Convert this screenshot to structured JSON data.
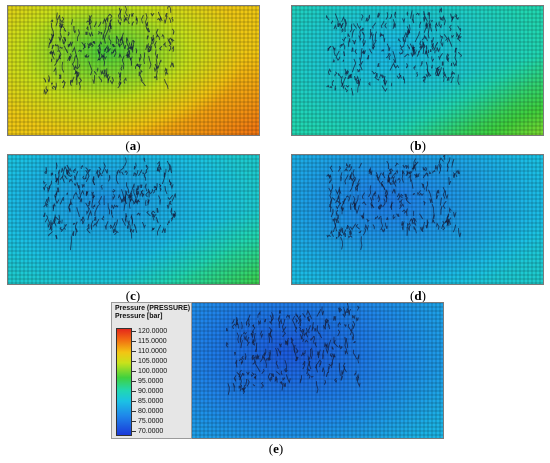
{
  "panels": [
    {
      "id": "a",
      "caption": "a",
      "scheme": "a"
    },
    {
      "id": "b",
      "caption": "b",
      "scheme": "b"
    },
    {
      "id": "c",
      "caption": "c",
      "scheme": "c"
    },
    {
      "id": "d",
      "caption": "d",
      "scheme": "d"
    },
    {
      "id": "e",
      "caption": "e",
      "scheme": "e"
    }
  ],
  "legend": {
    "title_line1": "Pressure (PRESSURE)",
    "title_line2": "Pressure [bar]",
    "ticks": [
      "120.0000",
      "115.0000",
      "110.0000",
      "105.0000",
      "100.0000",
      "95.0000",
      "90.0000",
      "85.0000",
      "80.0000",
      "75.0000",
      "70.0000"
    ]
  },
  "colors": {
    "high": "#e4281b",
    "mid": "#3fd13f",
    "low": "#1a39d9"
  }
}
